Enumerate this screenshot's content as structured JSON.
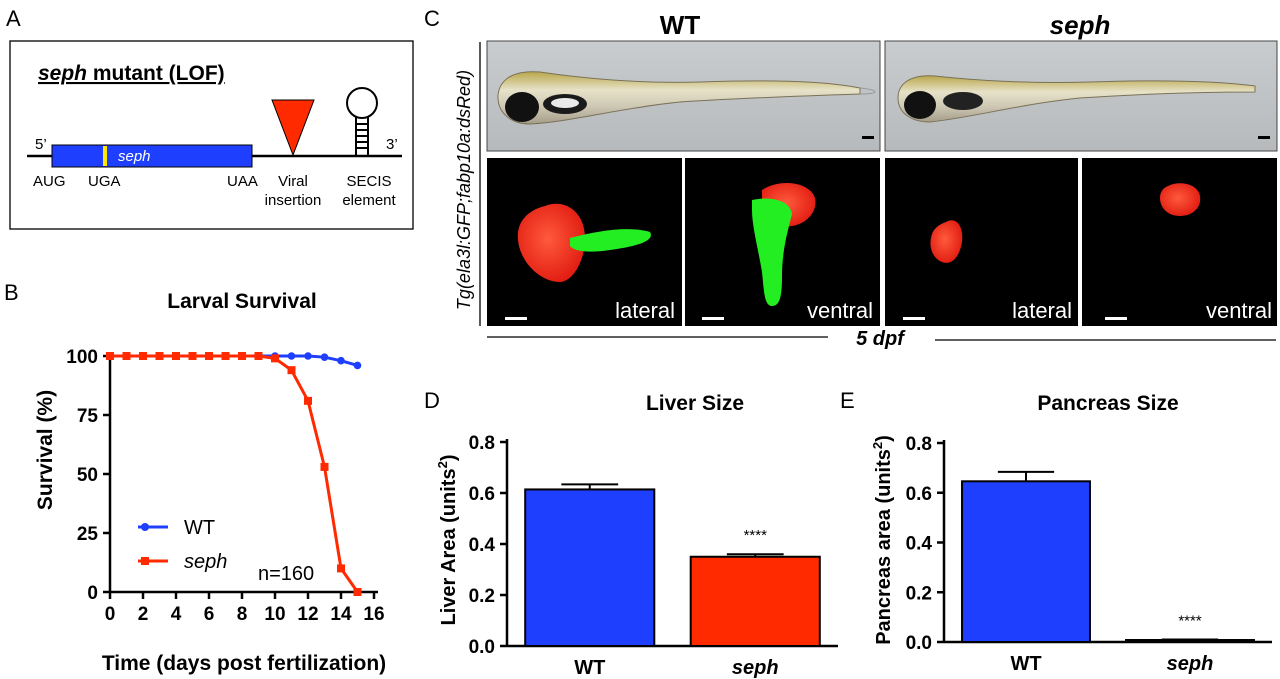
{
  "panel_labels": {
    "a": "A",
    "b": "B",
    "c": "C",
    "d": "D",
    "e": "E"
  },
  "panel_a": {
    "title_italic": "seph",
    "title_rest": " mutant (LOF)",
    "five_prime": "5’",
    "three_prime": "3’",
    "gene_label": "seph",
    "labels": {
      "aug": "AUG",
      "uga": "UGA",
      "uaa": "UAA",
      "viral_1": "Viral",
      "viral_2": "insertion",
      "secis_1": "SECIS",
      "secis_2": "element"
    },
    "colors": {
      "gene": "#1f3fff",
      "uga_mark": "#ffe800",
      "insertion": "#ff2a00"
    }
  },
  "panel_c": {
    "col_wt": "WT",
    "col_seph": "seph",
    "side_label": "Tg(ela3l:GFP;fabp10a:dsRed)",
    "bottom_label": "5 dpf",
    "views": [
      "lateral",
      "ventral",
      "lateral",
      "ventral"
    ],
    "colors": {
      "liver": "#ff2a1a",
      "pancreas": "#22ee22",
      "background": "#000000"
    }
  },
  "chart_data": [
    {
      "id": "larval-survival",
      "type": "line",
      "title": "Larval Survival",
      "xlabel": "Time (days post fertilization)",
      "ylabel": "Survival (%)",
      "xlim": [
        0,
        16
      ],
      "ylim": [
        0,
        100
      ],
      "x_ticks": [
        0,
        2,
        4,
        6,
        8,
        10,
        12,
        14,
        16
      ],
      "y_ticks": [
        0,
        25,
        50,
        75,
        100
      ],
      "legend_position": "lower-left",
      "annotation": "n=160",
      "series": [
        {
          "name": "WT",
          "italic": false,
          "color": "#1f3fff",
          "marker": "circle",
          "x": [
            0,
            1,
            2,
            3,
            4,
            5,
            6,
            7,
            8,
            9,
            10,
            11,
            12,
            13,
            14,
            15
          ],
          "y": [
            100,
            100,
            100,
            100,
            100,
            100,
            100,
            100,
            100,
            100,
            100,
            100,
            100,
            99.5,
            98,
            96
          ]
        },
        {
          "name": "seph",
          "italic": true,
          "color": "#ff2a00",
          "marker": "square",
          "x": [
            0,
            1,
            2,
            3,
            4,
            5,
            6,
            7,
            8,
            9,
            10,
            11,
            12,
            13,
            14,
            15
          ],
          "y": [
            100,
            100,
            100,
            100,
            100,
            100,
            100,
            100,
            100,
            100,
            99,
            94,
            81,
            53,
            10,
            0
          ]
        }
      ]
    },
    {
      "id": "liver-size",
      "type": "bar",
      "title": "Liver Size",
      "ylabel_main": "Liver Area (units",
      "ylabel_sup": "2",
      "ylabel_end": ")",
      "ylim": [
        0,
        0.8
      ],
      "y_ticks": [
        "0.0",
        "0.2",
        "0.4",
        "0.6",
        "0.8"
      ],
      "categories": [
        "WT",
        "seph"
      ],
      "italic": [
        false,
        true
      ],
      "values": [
        0.614,
        0.35
      ],
      "errors": [
        0.02,
        0.01
      ],
      "colors": [
        "#1f3fff",
        "#ff2a00"
      ],
      "significance": [
        "",
        "****"
      ]
    },
    {
      "id": "pancreas-size",
      "type": "bar",
      "title": "Pancreas Size",
      "ylabel_main": "Pancreas area (units",
      "ylabel_sup": "2",
      "ylabel_end": ")",
      "ylim": [
        0,
        0.8
      ],
      "y_ticks": [
        "0.0",
        "0.2",
        "0.4",
        "0.6",
        "0.8"
      ],
      "categories": [
        "WT",
        "seph"
      ],
      "italic": [
        false,
        true
      ],
      "values": [
        0.646,
        0.008
      ],
      "errors": [
        0.038,
        0.002
      ],
      "colors": [
        "#1f3fff",
        "#ff2a00"
      ],
      "significance": [
        "",
        "****"
      ]
    }
  ]
}
